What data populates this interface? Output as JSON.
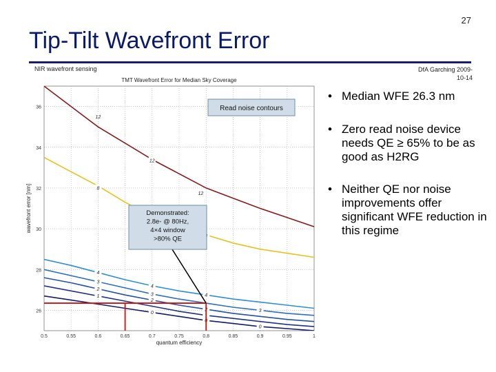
{
  "slide": {
    "page_number": "27",
    "title": "Tip-Tilt Wavefront Error",
    "subtitle_left": "NIR wavefront sensing",
    "subtitle_right_line1": "DfA Garching 2009-",
    "subtitle_right_line2": "10-14"
  },
  "bullets": [
    {
      "text": "Median WFE 26.3 nm"
    },
    {
      "text": "Zero read noise device needs QE ≥ 65% to be as good as H2RG"
    },
    {
      "text": "Neither QE nor noise improvements offer significant WFE reduction in this regime"
    }
  ],
  "colors": {
    "title": "#0a1a6a",
    "rule": "#1a1a72",
    "series": [
      "#8b1a1a",
      "#e8c21a",
      "#2b8fd6",
      "#2a6fc0",
      "#2050a8",
      "#20308a",
      "#141a6a"
    ],
    "marker": "#cc1111",
    "callout_fill": "#d0dde8",
    "callout_border": "#6f8fa0"
  },
  "chart_data": {
    "type": "line",
    "title": "TMT Wavefront Error for Median Sky Coverage",
    "xlabel": "quantum efficiency",
    "ylabel": "wavefront error [nm]",
    "xlim": [
      0.5,
      1.0
    ],
    "ylim": [
      25,
      37
    ],
    "x_ticks": [
      "0.5",
      "0.55",
      "0.6",
      "0.65",
      "0.7",
      "0.75",
      "0.8",
      "0.85",
      "0.9",
      "0.95",
      "1"
    ],
    "y_ticks": [
      "26",
      "28",
      "30",
      "32",
      "34",
      "36"
    ],
    "grid": true,
    "series": [
      {
        "x": [
          0.5,
          0.55,
          0.6,
          0.65,
          0.7,
          0.75,
          0.8,
          0.85,
          0.9,
          0.95,
          1.0
        ],
        "y": [
          37.0,
          36.0,
          35.0,
          34.2,
          33.4,
          32.7,
          32.0,
          31.5,
          31.0,
          30.55,
          30.1
        ]
      },
      {
        "x": [
          0.5,
          0.55,
          0.6,
          0.65,
          0.7,
          0.75,
          0.8,
          0.85,
          0.9,
          0.95,
          1.0
        ],
        "y": [
          33.5,
          32.8,
          32.1,
          31.3,
          30.6,
          30.1,
          29.7,
          29.3,
          29.0,
          28.8,
          28.6
        ]
      },
      {
        "x": [
          0.5,
          0.55,
          0.6,
          0.65,
          0.7,
          0.75,
          0.8,
          0.85,
          0.9,
          0.95,
          1.0
        ],
        "y": [
          28.5,
          28.2,
          27.85,
          27.5,
          27.2,
          26.95,
          26.75,
          26.55,
          26.4,
          26.25,
          26.1
        ]
      },
      {
        "x": [
          0.5,
          0.55,
          0.6,
          0.65,
          0.7,
          0.75,
          0.8,
          0.85,
          0.9,
          0.95,
          1.0
        ],
        "y": [
          28.0,
          27.7,
          27.4,
          27.1,
          26.8,
          26.55,
          26.35,
          26.15,
          26.0,
          25.85,
          25.75
        ]
      },
      {
        "x": [
          0.5,
          0.55,
          0.6,
          0.65,
          0.7,
          0.75,
          0.8,
          0.85,
          0.9,
          0.95,
          1.0
        ],
        "y": [
          27.6,
          27.35,
          27.05,
          26.75,
          26.5,
          26.25,
          26.05,
          25.85,
          25.7,
          25.55,
          25.45
        ]
      },
      {
        "x": [
          0.5,
          0.55,
          0.6,
          0.65,
          0.7,
          0.75,
          0.8,
          0.85,
          0.9,
          0.95,
          1.0
        ],
        "y": [
          27.2,
          26.95,
          26.7,
          26.45,
          26.2,
          25.95,
          25.75,
          25.6,
          25.45,
          25.3,
          25.2
        ]
      },
      {
        "x": [
          0.5,
          0.55,
          0.6,
          0.65,
          0.7,
          0.75,
          0.8,
          0.85,
          0.9,
          0.95,
          1.0
        ],
        "y": [
          26.7,
          26.5,
          26.3,
          26.1,
          25.9,
          25.7,
          25.5,
          25.35,
          25.2,
          25.1,
          25.0
        ]
      }
    ],
    "contour_labels": [
      {
        "text": "12",
        "x": 0.6,
        "y": 35.5,
        "series": 0
      },
      {
        "text": "12",
        "x": 0.7,
        "y": 33.35,
        "series": 0
      },
      {
        "text": "12",
        "x": 0.79,
        "y": 31.75,
        "series": 0
      },
      {
        "text": "8",
        "x": 0.6,
        "y": 32.0,
        "series": 1
      },
      {
        "text": "8",
        "x": 0.8,
        "y": 29.65,
        "series": 1
      },
      {
        "text": "4",
        "x": 0.6,
        "y": 27.85,
        "series": 2
      },
      {
        "text": "4",
        "x": 0.7,
        "y": 27.2,
        "series": 2
      },
      {
        "text": "4",
        "x": 0.8,
        "y": 26.75,
        "series": 2
      },
      {
        "text": "3",
        "x": 0.6,
        "y": 27.4,
        "series": 3
      },
      {
        "text": "3",
        "x": 0.7,
        "y": 26.8,
        "series": 3
      },
      {
        "text": "3",
        "x": 0.9,
        "y": 26.0,
        "series": 3
      },
      {
        "text": "2",
        "x": 0.6,
        "y": 27.05,
        "series": 4
      },
      {
        "text": "2",
        "x": 0.7,
        "y": 26.5,
        "series": 4
      },
      {
        "text": "2",
        "x": 0.8,
        "y": 26.05,
        "series": 4
      },
      {
        "text": "1",
        "x": 0.6,
        "y": 26.7,
        "series": 5
      },
      {
        "text": "1",
        "x": 0.8,
        "y": 25.75,
        "series": 5
      },
      {
        "text": "0",
        "x": 0.7,
        "y": 25.9,
        "series": 6
      },
      {
        "text": "0",
        "x": 0.8,
        "y": 25.5,
        "series": 6
      },
      {
        "text": "0",
        "x": 0.9,
        "y": 25.2,
        "series": 6
      }
    ],
    "annotations": [
      {
        "text": "Read noise contours",
        "kind": "callout"
      },
      {
        "lines": [
          "Demonstrated:",
          "2.8e- @ 80Hz,",
          "4×4 window",
          ">80% QE"
        ],
        "kind": "callout",
        "points_to": {
          "x": 0.8,
          "y": 26.35
        }
      }
    ],
    "markers": [
      {
        "x": 0.65,
        "y": 26.35
      },
      {
        "x": 0.8,
        "y": 26.35
      }
    ]
  }
}
